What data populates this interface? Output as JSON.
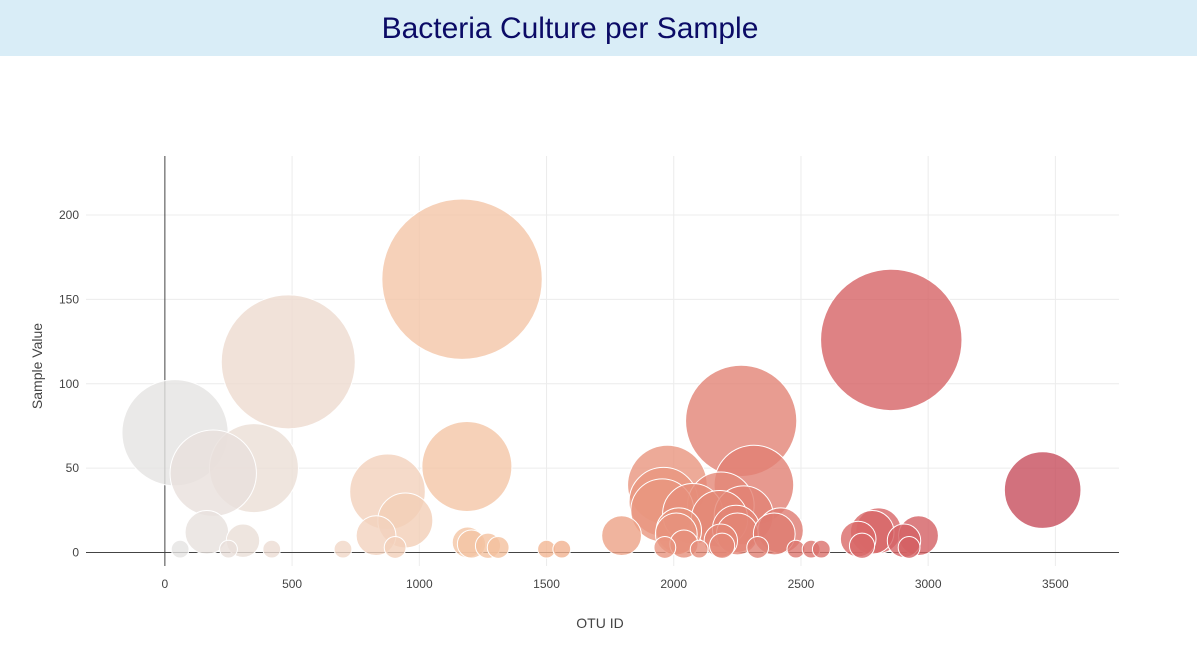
{
  "header": {
    "title": "Bacteria Culture per Sample"
  },
  "chart_data": {
    "type": "scatter",
    "variant": "bubble",
    "xlabel": "OTU ID",
    "ylabel": "Sample Value",
    "xlim": [
      -310,
      3750
    ],
    "ylim": [
      -8,
      235
    ],
    "xticks": [
      0,
      500,
      1000,
      1500,
      2000,
      2500,
      3000,
      3500
    ],
    "yticks": [
      0,
      50,
      100,
      150,
      200
    ],
    "grid": true,
    "colorscale": [
      "#e4e4e4",
      "#f1d7c7",
      "#f5bd97",
      "#e58c79",
      "#d76566",
      "#c64c5b"
    ],
    "series": [
      {
        "values": [
          {
            "x": 40,
            "y": 71
          },
          {
            "x": 190,
            "y": 47
          },
          {
            "x": 350,
            "y": 50
          },
          {
            "x": 485,
            "y": 113
          },
          {
            "x": 165,
            "y": 12
          },
          {
            "x": 307,
            "y": 7
          },
          {
            "x": 875,
            "y": 36
          },
          {
            "x": 945,
            "y": 19
          },
          {
            "x": 830,
            "y": 10
          },
          {
            "x": 1168,
            "y": 162
          },
          {
            "x": 1187,
            "y": 51
          },
          {
            "x": 1190,
            "y": 6
          },
          {
            "x": 1205,
            "y": 5
          },
          {
            "x": 1270,
            "y": 4
          },
          {
            "x": 1310,
            "y": 3
          },
          {
            "x": 1795,
            "y": 10
          },
          {
            "x": 1975,
            "y": 40
          },
          {
            "x": 1960,
            "y": 30
          },
          {
            "x": 1955,
            "y": 25
          },
          {
            "x": 2020,
            "y": 13
          },
          {
            "x": 2010,
            "y": 11
          },
          {
            "x": 2075,
            "y": 23
          },
          {
            "x": 2040,
            "y": 5
          },
          {
            "x": 1965,
            "y": 3
          },
          {
            "x": 2265,
            "y": 78
          },
          {
            "x": 2185,
            "y": 28
          },
          {
            "x": 2180,
            "y": 20
          },
          {
            "x": 2315,
            "y": 40
          },
          {
            "x": 2275,
            "y": 22
          },
          {
            "x": 2245,
            "y": 14
          },
          {
            "x": 2250,
            "y": 11
          },
          {
            "x": 2185,
            "y": 7
          },
          {
            "x": 2190,
            "y": 4
          },
          {
            "x": 2330,
            "y": 3
          },
          {
            "x": 2395,
            "y": 11
          },
          {
            "x": 2420,
            "y": 13
          },
          {
            "x": 2855,
            "y": 126
          },
          {
            "x": 2725,
            "y": 8
          },
          {
            "x": 2740,
            "y": 4
          },
          {
            "x": 2780,
            "y": 12
          },
          {
            "x": 2805,
            "y": 13
          },
          {
            "x": 2905,
            "y": 7
          },
          {
            "x": 2962,
            "y": 10
          },
          {
            "x": 2925,
            "y": 3
          },
          {
            "x": 3450,
            "y": 37
          },
          {
            "x": 60,
            "y": 2
          },
          {
            "x": 250,
            "y": 2
          },
          {
            "x": 420,
            "y": 2
          },
          {
            "x": 700,
            "y": 2
          },
          {
            "x": 905,
            "y": 3
          },
          {
            "x": 1500,
            "y": 2
          },
          {
            "x": 1560,
            "y": 2
          },
          {
            "x": 2100,
            "y": 2
          },
          {
            "x": 2480,
            "y": 2
          },
          {
            "x": 2540,
            "y": 2
          },
          {
            "x": 2580,
            "y": 2
          }
        ]
      }
    ]
  }
}
